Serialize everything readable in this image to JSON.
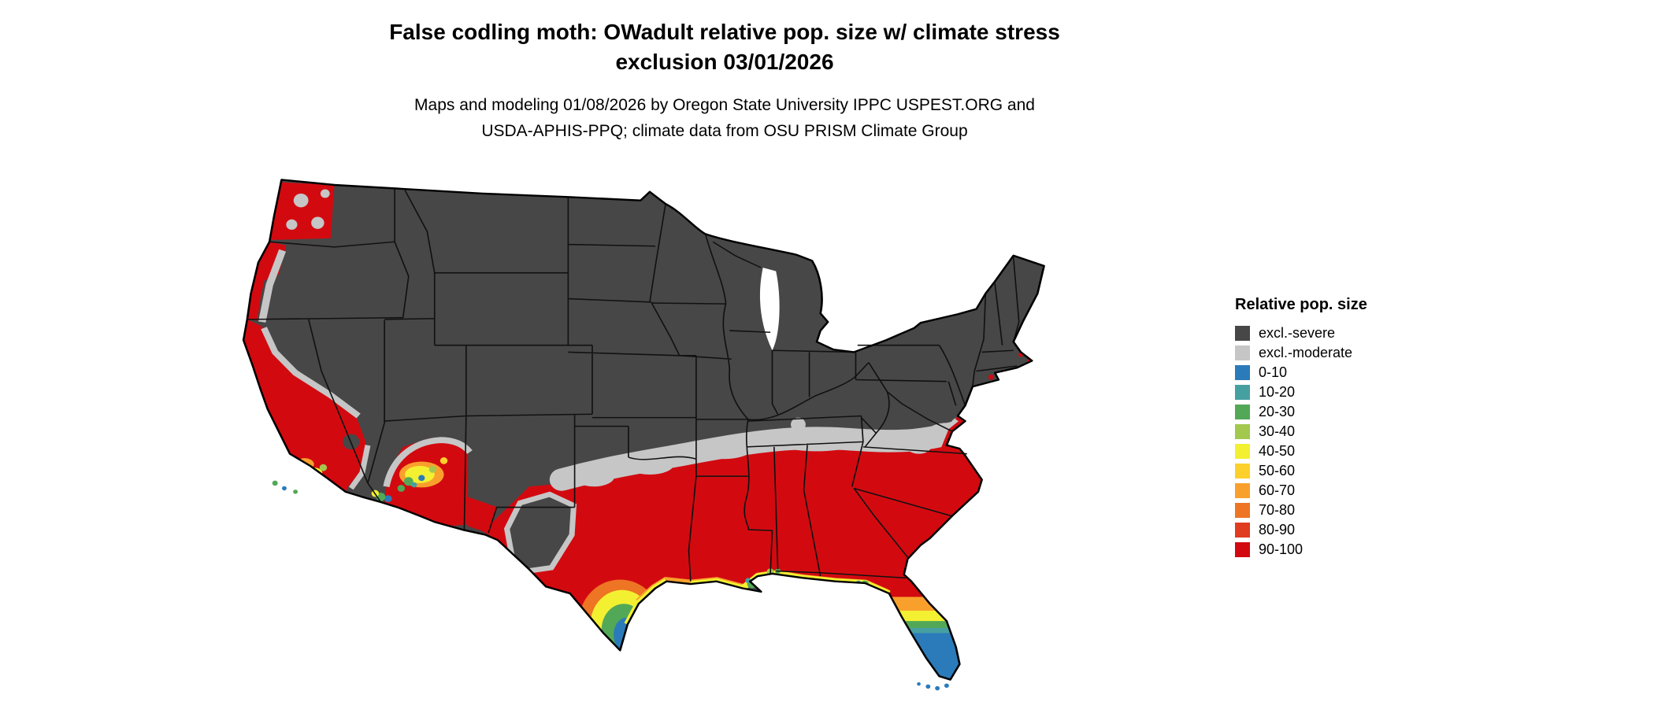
{
  "title": "False codling moth: OWadult relative pop. size w/ climate stress\nexclusion 03/01/2026",
  "subtitle": "Maps and modeling 01/08/2026 by Oregon State University IPPC USPEST.ORG and\nUSDA-APHIS-PPQ; climate data from OSU PRISM Climate Group",
  "map": {
    "area_label": "Contiguous United States choropleth of relative population size"
  },
  "legend": {
    "title": "Relative pop. size",
    "items": [
      {
        "label": "excl.-severe",
        "color": "#474747"
      },
      {
        "label": "excl.-moderate",
        "color": "#C6C6C6"
      },
      {
        "label": "0-10",
        "color": "#2B7BBA"
      },
      {
        "label": "10-20",
        "color": "#46A0A2"
      },
      {
        "label": "20-30",
        "color": "#53A857"
      },
      {
        "label": "30-40",
        "color": "#A2C84E"
      },
      {
        "label": "40-50",
        "color": "#F3F032"
      },
      {
        "label": "50-60",
        "color": "#FCD02B"
      },
      {
        "label": "60-70",
        "color": "#F9A02C"
      },
      {
        "label": "70-80",
        "color": "#EE7523"
      },
      {
        "label": "80-90",
        "color": "#E03C20"
      },
      {
        "label": "90-100",
        "color": "#D20A10"
      }
    ]
  }
}
